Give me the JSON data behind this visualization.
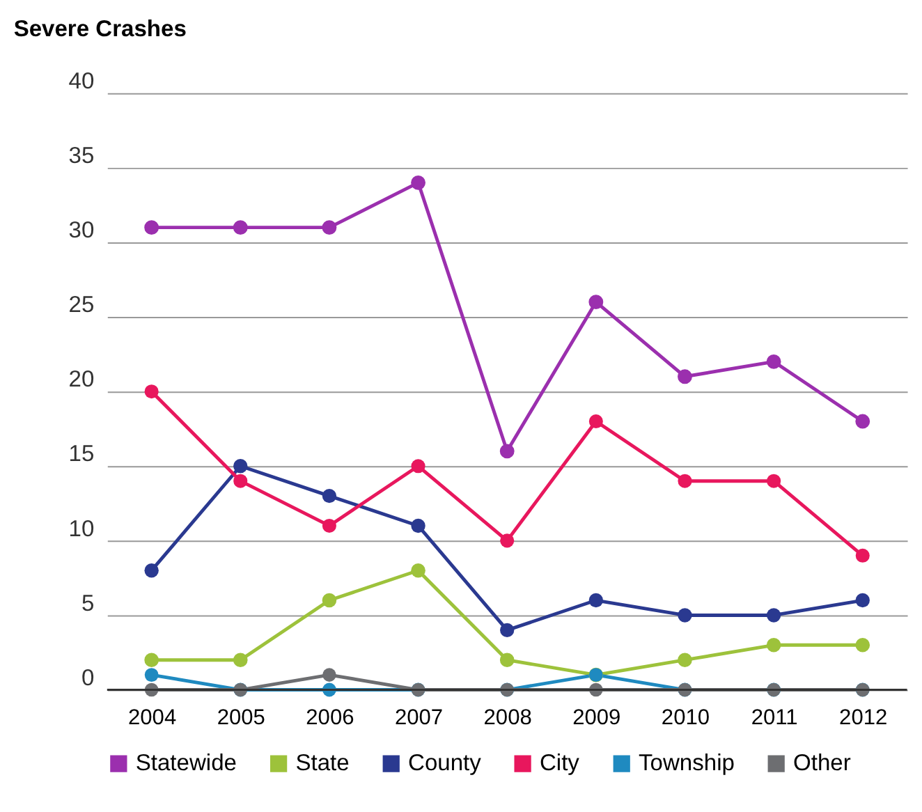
{
  "chart_data": {
    "type": "line",
    "title": "Severe Crashes",
    "categories": [
      "2004",
      "2005",
      "2006",
      "2007",
      "2008",
      "2009",
      "2010",
      "2011",
      "2012"
    ],
    "series": [
      {
        "name": "Statewide",
        "color": "#9b2fae",
        "values": [
          31,
          31,
          31,
          34,
          16,
          26,
          21,
          22,
          18
        ]
      },
      {
        "name": "State",
        "color": "#9dc23b",
        "values": [
          2,
          2,
          6,
          8,
          2,
          1,
          2,
          3,
          3
        ]
      },
      {
        "name": "County",
        "color": "#2a3990",
        "values": [
          8,
          15,
          13,
          11,
          4,
          6,
          5,
          5,
          6
        ]
      },
      {
        "name": "City",
        "color": "#e8175d",
        "values": [
          20,
          14,
          11,
          15,
          10,
          18,
          14,
          14,
          9
        ]
      },
      {
        "name": "Township",
        "color": "#1f8ac0",
        "values": [
          1,
          0,
          0,
          0,
          0,
          1,
          0,
          0,
          0
        ]
      },
      {
        "name": "Other",
        "color": "#6d6e71",
        "values": [
          0,
          0,
          1,
          0,
          0,
          0,
          0,
          0,
          0
        ]
      }
    ],
    "ylim": [
      0,
      40
    ],
    "yticks": [
      0,
      5,
      10,
      15,
      20,
      25,
      30,
      35,
      40
    ],
    "grid": "y",
    "legend": "bottom",
    "marker": "circle",
    "line_style": "solid"
  }
}
